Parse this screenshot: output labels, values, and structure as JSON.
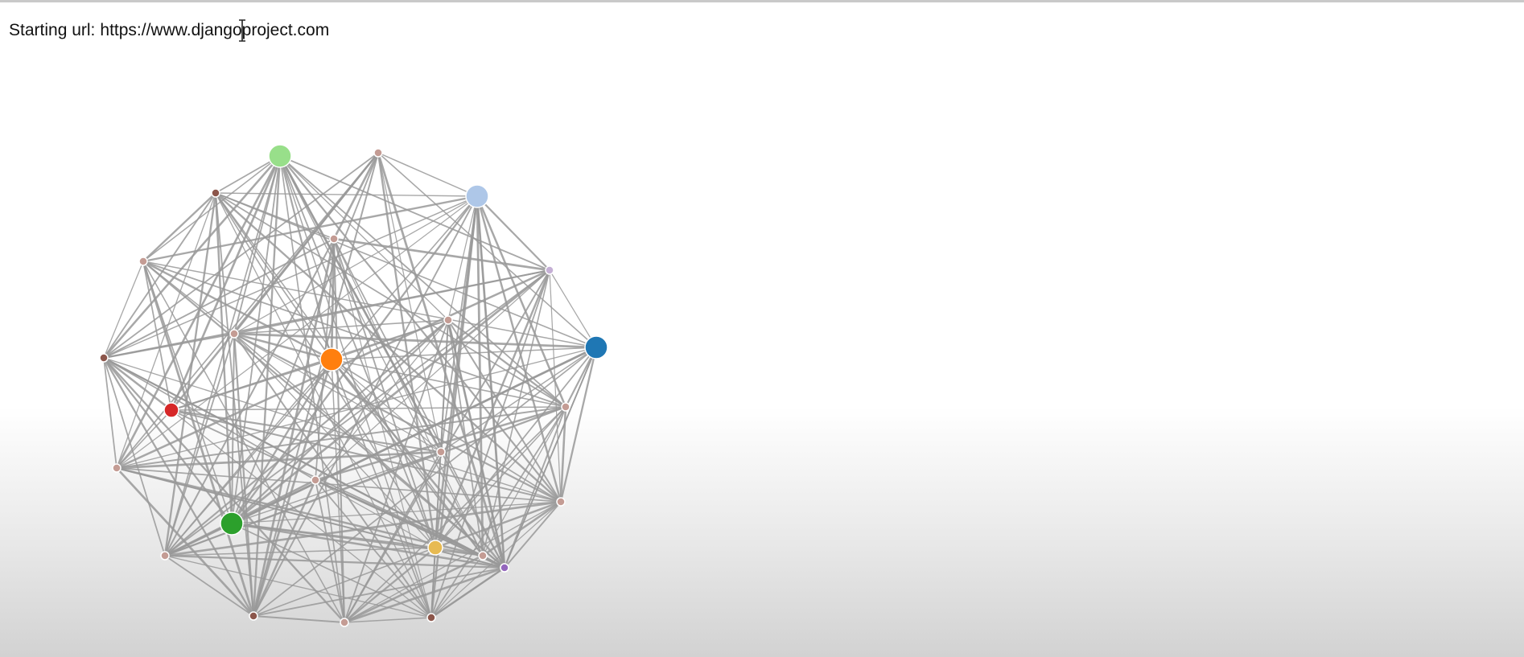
{
  "starting_url": {
    "label": "Starting url:",
    "value": "https://www.djangoproject.com"
  },
  "graph": {
    "nodes": [
      {
        "id": "n1",
        "color": "#98df8a",
        "size": "large"
      },
      {
        "id": "n2",
        "color": "#c49c94",
        "size": "small"
      },
      {
        "id": "n3",
        "color": "#aec7e8",
        "size": "large"
      },
      {
        "id": "n4",
        "color": "#c5b0d5",
        "size": "small"
      },
      {
        "id": "n5",
        "color": "#1f77b4",
        "size": "large"
      },
      {
        "id": "n6",
        "color": "#c49c94",
        "size": "small"
      },
      {
        "id": "n7",
        "color": "#c49c94",
        "size": "small"
      },
      {
        "id": "n8",
        "color": "#c49c94",
        "size": "small"
      },
      {
        "id": "n9",
        "color": "#c5b0d5",
        "size": "small"
      },
      {
        "id": "n10",
        "color": "#8c564b",
        "size": "small"
      },
      {
        "id": "n11",
        "color": "#c49c94",
        "size": "small"
      },
      {
        "id": "n12",
        "color": "#8c564b",
        "size": "small"
      },
      {
        "id": "n13",
        "color": "#c49c94",
        "size": "small"
      },
      {
        "id": "n14",
        "color": "#c49c94",
        "size": "small"
      },
      {
        "id": "n15",
        "color": "#8c564b",
        "size": "small"
      },
      {
        "id": "n16",
        "color": "#c49c94",
        "size": "small"
      },
      {
        "id": "n17",
        "color": "#8c564b",
        "size": "small"
      },
      {
        "id": "n18",
        "color": "#c49c94",
        "size": "small"
      },
      {
        "id": "n19",
        "color": "#c49c94",
        "size": "small"
      },
      {
        "id": "n20",
        "color": "#c49c94",
        "size": "small"
      },
      {
        "id": "n21",
        "color": "#c49c94",
        "size": "small"
      },
      {
        "id": "n22",
        "color": "#ff7f0e",
        "size": "large"
      },
      {
        "id": "n23",
        "color": "#d62728",
        "size": "medium"
      },
      {
        "id": "n24",
        "color": "#2ca02c",
        "size": "large"
      },
      {
        "id": "n25",
        "color": "#e7ba52",
        "size": "medium"
      },
      {
        "id": "n26",
        "color": "#c49c94",
        "size": "small"
      },
      {
        "id": "n27",
        "color": "#9467bd",
        "size": "small"
      }
    ]
  }
}
